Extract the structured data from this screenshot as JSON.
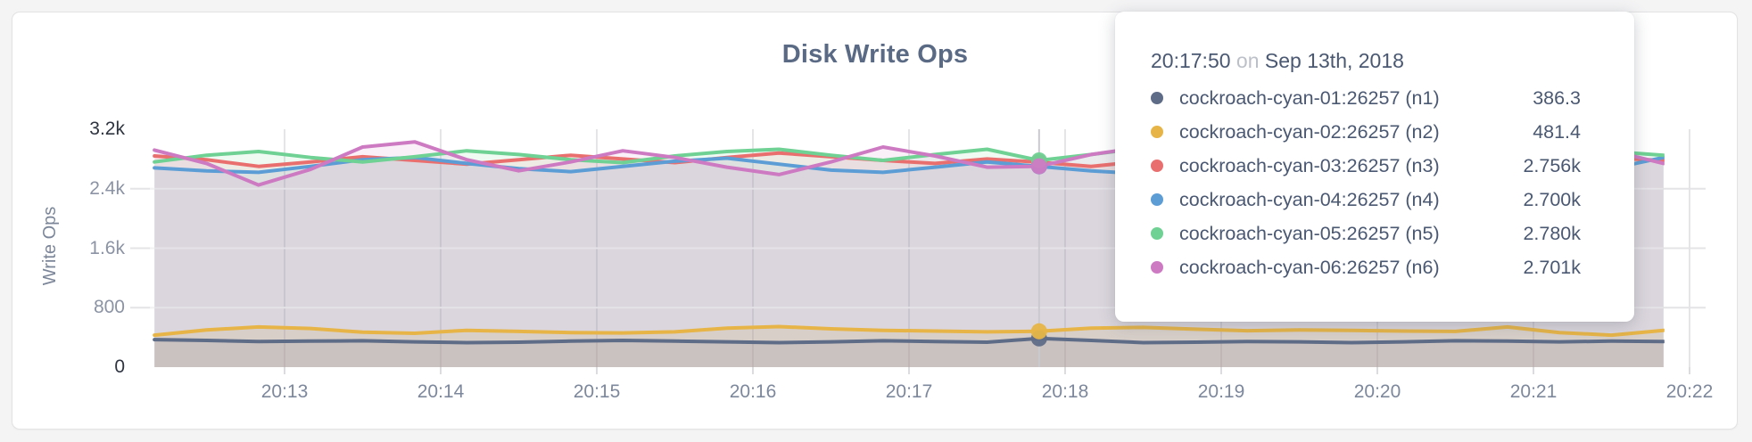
{
  "panel": {
    "title": "Disk Write Ops"
  },
  "colors": {
    "title_text": "#5a6a85",
    "axis_text": "#7d889c",
    "axis_text_strong": "#2e3440",
    "gridline": "#e4e4e7",
    "hover_line": "#c9c9cf",
    "tooltip_text": "#4a5872",
    "card_background": "#ffffff",
    "page_background": "#f4f4f5"
  },
  "chart_data": {
    "type": "line",
    "title": "Disk Write Ops",
    "xlabel": "",
    "ylabel": "Write Ops",
    "ylim": [
      0,
      3200
    ],
    "grid": true,
    "legend_position": "hover-tooltip",
    "y_ticks": [
      {
        "label": "3.2k",
        "value": 3200
      },
      {
        "label": "2.4k",
        "value": 2400
      },
      {
        "label": "1.6k",
        "value": 1600
      },
      {
        "label": "800",
        "value": 800
      },
      {
        "label": "0",
        "value": 0
      }
    ],
    "x_ticks": [
      "20:13",
      "20:14",
      "20:15",
      "20:16",
      "20:17",
      "20:18",
      "20:19",
      "20:20",
      "20:21",
      "20:22"
    ],
    "x_start": "20:12:10",
    "step_seconds": 20,
    "hover_index": 17,
    "series": [
      {
        "name": "cockroach-cyan-01:26257 (n1)",
        "color": "#5F6C87",
        "values": [
          370,
          360,
          345,
          350,
          355,
          340,
          330,
          335,
          350,
          360,
          350,
          340,
          330,
          340,
          355,
          345,
          335,
          386.3,
          360,
          330,
          335,
          345,
          340,
          330,
          340,
          355,
          350,
          340,
          350,
          345
        ]
      },
      {
        "name": "cockroach-cyan-02:26257 (n2)",
        "color": "#E7B547",
        "values": [
          430,
          500,
          540,
          520,
          470,
          455,
          495,
          480,
          465,
          460,
          475,
          525,
          545,
          515,
          495,
          485,
          475,
          481.4,
          525,
          535,
          510,
          490,
          500,
          495,
          485,
          480,
          540,
          465,
          430,
          495
        ]
      },
      {
        "name": "cockroach-cyan-03:26257 (n3)",
        "color": "#E96F6F",
        "values": [
          2840,
          2790,
          2700,
          2760,
          2830,
          2780,
          2730,
          2790,
          2850,
          2800,
          2750,
          2820,
          2880,
          2830,
          2780,
          2740,
          2800,
          2756,
          2700,
          2770,
          2830,
          2780,
          2730,
          2800,
          2860,
          2780,
          2720,
          2770,
          2810,
          2780
        ]
      },
      {
        "name": "cockroach-cyan-04:26257 (n4)",
        "color": "#5C9DD6",
        "values": [
          2680,
          2640,
          2620,
          2700,
          2790,
          2820,
          2740,
          2670,
          2630,
          2700,
          2770,
          2810,
          2730,
          2650,
          2620,
          2690,
          2760,
          2700,
          2640,
          2600,
          2690,
          2770,
          2810,
          2710,
          2640,
          2700,
          2770,
          2720,
          2670,
          2820
        ]
      },
      {
        "name": "cockroach-cyan-05:26257 (n5)",
        "color": "#6FD193",
        "values": [
          2760,
          2850,
          2900,
          2820,
          2760,
          2830,
          2910,
          2860,
          2790,
          2750,
          2840,
          2900,
          2930,
          2850,
          2780,
          2860,
          2930,
          2780,
          2860,
          2950,
          2870,
          2790,
          2750,
          2840,
          2910,
          2850,
          2770,
          2840,
          2900,
          2850
        ]
      },
      {
        "name": "cockroach-cyan-06:26257 (n6)",
        "color": "#CD7AC3",
        "values": [
          2920,
          2740,
          2450,
          2660,
          2960,
          3030,
          2790,
          2640,
          2760,
          2910,
          2820,
          2690,
          2590,
          2760,
          2960,
          2840,
          2690,
          2701,
          2860,
          2960,
          2790,
          2640,
          2540,
          2710,
          2860,
          2960,
          2740,
          2590,
          2910,
          2740
        ]
      }
    ]
  },
  "tooltip": {
    "time": "20:17:50",
    "connector": "on",
    "date": "Sep 13th, 2018",
    "rows": [
      {
        "label": "cockroach-cyan-01:26257 (n1)",
        "value": "386.3"
      },
      {
        "label": "cockroach-cyan-02:26257 (n2)",
        "value": "481.4"
      },
      {
        "label": "cockroach-cyan-03:26257 (n3)",
        "value": "2.756k"
      },
      {
        "label": "cockroach-cyan-04:26257 (n4)",
        "value": "2.700k"
      },
      {
        "label": "cockroach-cyan-05:26257 (n5)",
        "value": "2.780k"
      },
      {
        "label": "cockroach-cyan-06:26257 (n6)",
        "value": "2.701k"
      }
    ]
  }
}
